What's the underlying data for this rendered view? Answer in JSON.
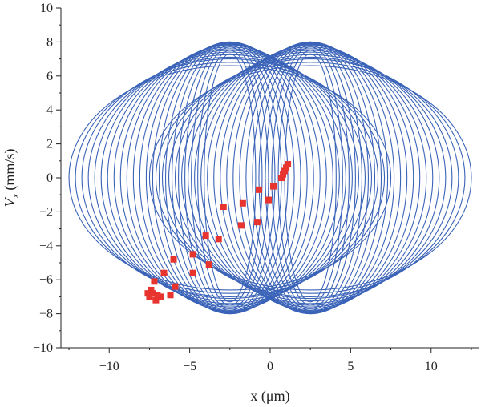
{
  "chart_data": {
    "type": "scatter",
    "xlabel": "x (μm)",
    "ylabel": "V",
    "ylabel_subscript": "x",
    "ylabel_unit": "(mm/s)",
    "xlim": [
      -13,
      13
    ],
    "ylim": [
      -10,
      10
    ],
    "xticks": [
      -10,
      -5,
      0,
      5,
      10
    ],
    "yticks": [
      -10,
      -8,
      -6,
      -4,
      -2,
      0,
      2,
      4,
      6,
      8,
      10
    ],
    "xtick_labels": [
      "−10",
      "−5",
      "0",
      "5",
      "10"
    ],
    "ytick_labels": [
      "−10",
      "−8",
      "−6",
      "−4",
      "−2",
      "0",
      "2",
      "4",
      "6",
      "8",
      "10"
    ],
    "grid": false,
    "series": [
      {
        "kind": "orbit",
        "color": "#3a63b8",
        "centers_x": [
          -2.5,
          2.5
        ],
        "ellipses": [
          {
            "rx": 10.0,
            "ry": 6.6
          },
          {
            "rx": 9.6,
            "ry": 6.8
          },
          {
            "rx": 9.2,
            "ry": 7.0
          },
          {
            "rx": 8.8,
            "ry": 7.1
          },
          {
            "rx": 8.4,
            "ry": 7.25
          },
          {
            "rx": 8.0,
            "ry": 7.4
          },
          {
            "rx": 7.6,
            "ry": 7.5
          },
          {
            "rx": 7.2,
            "ry": 7.6
          },
          {
            "rx": 6.8,
            "ry": 7.7
          },
          {
            "rx": 6.4,
            "ry": 7.8
          },
          {
            "rx": 6.0,
            "ry": 7.85
          },
          {
            "rx": 5.6,
            "ry": 7.9
          },
          {
            "rx": 5.2,
            "ry": 7.95
          },
          {
            "rx": 4.8,
            "ry": 8.0
          },
          {
            "rx": 4.4,
            "ry": 8.0
          },
          {
            "rx": 4.0,
            "ry": 8.0
          },
          {
            "rx": 3.6,
            "ry": 7.95
          },
          {
            "rx": 3.2,
            "ry": 7.9
          },
          {
            "rx": 2.8,
            "ry": 7.8
          },
          {
            "rx": 2.4,
            "ry": 7.7
          },
          {
            "rx": 2.0,
            "ry": 7.5
          },
          {
            "rx": 1.6,
            "ry": 7.3
          }
        ]
      },
      {
        "kind": "markers",
        "color": "#e8342f",
        "points": [
          [
            1.1,
            0.8
          ],
          [
            1.0,
            0.6
          ],
          [
            0.9,
            0.4
          ],
          [
            0.8,
            0.2
          ],
          [
            0.7,
            0.0
          ],
          [
            0.2,
            -0.5
          ],
          [
            -0.7,
            -0.7
          ],
          [
            -0.1,
            -1.3
          ],
          [
            -1.7,
            -1.5
          ],
          [
            -2.9,
            -1.7
          ],
          [
            -0.8,
            -2.6
          ],
          [
            -1.8,
            -2.8
          ],
          [
            -4.0,
            -3.4
          ],
          [
            -3.2,
            -3.6
          ],
          [
            -4.8,
            -4.5
          ],
          [
            -6.0,
            -4.8
          ],
          [
            -3.8,
            -5.1
          ],
          [
            -4.8,
            -5.6
          ],
          [
            -6.6,
            -5.6
          ],
          [
            -7.2,
            -6.1
          ],
          [
            -5.9,
            -6.4
          ],
          [
            -7.4,
            -6.6
          ],
          [
            -7.6,
            -6.8
          ],
          [
            -7.3,
            -6.8
          ],
          [
            -7.0,
            -6.9
          ],
          [
            -6.2,
            -6.9
          ],
          [
            -7.5,
            -7.0
          ],
          [
            -7.1,
            -7.2
          ],
          [
            -6.8,
            -7.0
          ]
        ]
      }
    ]
  }
}
